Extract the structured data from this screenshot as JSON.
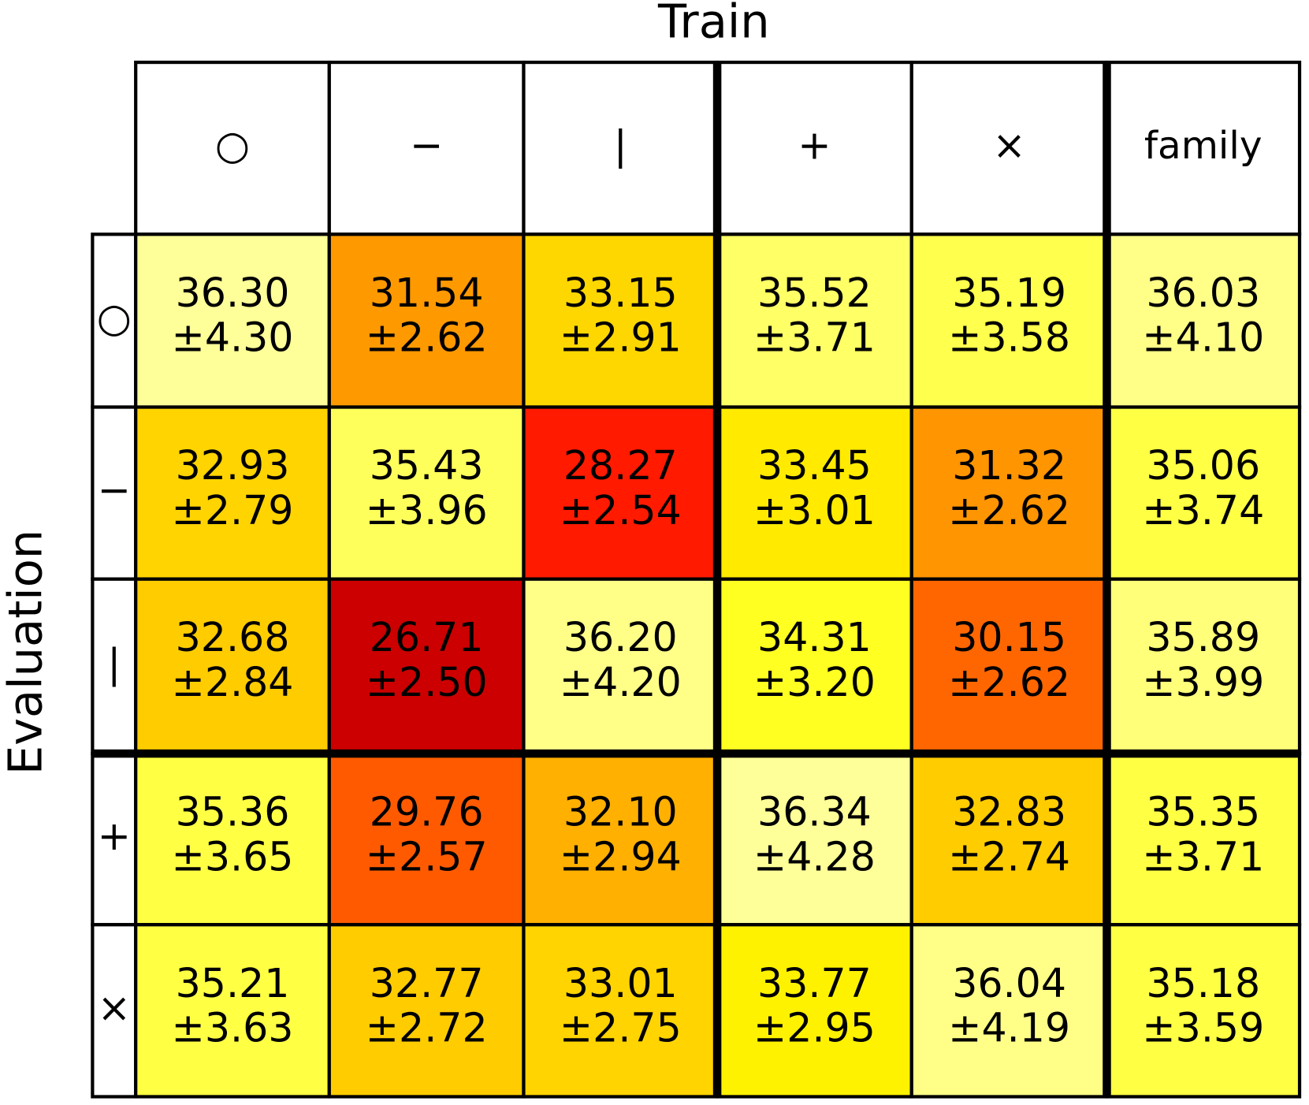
{
  "chart_data": {
    "type": "heatmap",
    "x_label": "Train",
    "y_label": "Evaluation",
    "x_categories": [
      "○",
      "−",
      "|",
      "+",
      "×",
      "family"
    ],
    "y_categories": [
      "○",
      "−",
      "|",
      "+",
      "×"
    ],
    "values": [
      [
        36.3,
        31.54,
        33.15,
        35.52,
        35.19,
        36.03
      ],
      [
        32.93,
        35.43,
        28.27,
        33.45,
        31.32,
        35.06
      ],
      [
        32.68,
        26.71,
        36.2,
        34.31,
        30.15,
        35.89
      ],
      [
        35.36,
        29.76,
        32.1,
        36.34,
        32.83,
        35.35
      ],
      [
        35.21,
        32.77,
        33.01,
        33.77,
        36.04,
        35.18
      ]
    ],
    "value_labels": [
      [
        "36.30",
        "31.54",
        "33.15",
        "35.52",
        "35.19",
        "36.03"
      ],
      [
        "32.93",
        "35.43",
        "28.27",
        "33.45",
        "31.32",
        "35.06"
      ],
      [
        "32.68",
        "26.71",
        "36.20",
        "34.31",
        "30.15",
        "35.89"
      ],
      [
        "35.36",
        "29.76",
        "32.10",
        "36.34",
        "32.83",
        "35.35"
      ],
      [
        "35.21",
        "32.77",
        "33.01",
        "33.77",
        "36.04",
        "35.18"
      ]
    ],
    "errors": [
      [
        4.3,
        2.62,
        2.91,
        3.71,
        3.58,
        4.1
      ],
      [
        2.79,
        3.96,
        2.54,
        3.01,
        2.62,
        3.74
      ],
      [
        2.84,
        2.5,
        4.2,
        3.2,
        2.62,
        3.99
      ],
      [
        3.65,
        2.57,
        2.94,
        4.28,
        2.74,
        3.71
      ],
      [
        3.63,
        2.72,
        2.75,
        2.95,
        4.19,
        3.59
      ]
    ],
    "error_labels": [
      [
        "±4.30",
        "±2.62",
        "±2.91",
        "±3.71",
        "±3.58",
        "±4.10"
      ],
      [
        "±2.79",
        "±3.96",
        "±2.54",
        "±3.01",
        "±2.62",
        "±3.74"
      ],
      [
        "±2.84",
        "±2.50",
        "±4.20",
        "±3.20",
        "±2.62",
        "±3.99"
      ],
      [
        "±3.65",
        "±2.57",
        "±2.94",
        "±4.28",
        "±2.74",
        "±3.71"
      ],
      [
        "±3.63",
        "±2.72",
        "±2.75",
        "±2.95",
        "±4.19",
        "±3.59"
      ]
    ],
    "colors": [
      [
        "#ffff99",
        "#ff9900",
        "#ffd700",
        "#ffff66",
        "#ffff4d",
        "#ffff88"
      ],
      [
        "#ffd400",
        "#ffff5c",
        "#ff1a00",
        "#ffea00",
        "#ff9500",
        "#ffff44"
      ],
      [
        "#ffcc00",
        "#cc0000",
        "#ffff88",
        "#ffff22",
        "#ff6600",
        "#ffff7a"
      ],
      [
        "#ffff44",
        "#ff5a00",
        "#ffb000",
        "#ffff99",
        "#ffcc00",
        "#ffff44"
      ],
      [
        "#ffff44",
        "#ffcc00",
        "#ffd400",
        "#fff200",
        "#ffff88",
        "#ffff44"
      ]
    ]
  }
}
